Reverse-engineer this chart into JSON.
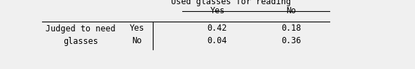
{
  "header_top": "Used glasses for reading",
  "col_headers": [
    "Yes",
    "No"
  ],
  "row_label_line1": "Judged to need",
  "row_label_line2": "glasses",
  "row_sub_labels": [
    "Yes",
    "No"
  ],
  "values": [
    [
      0.42,
      0.18
    ],
    [
      0.04,
      0.36
    ]
  ],
  "bg_color": "#f0f0f0",
  "font_size": 8.5,
  "font_family": "DejaVu Sans Mono"
}
